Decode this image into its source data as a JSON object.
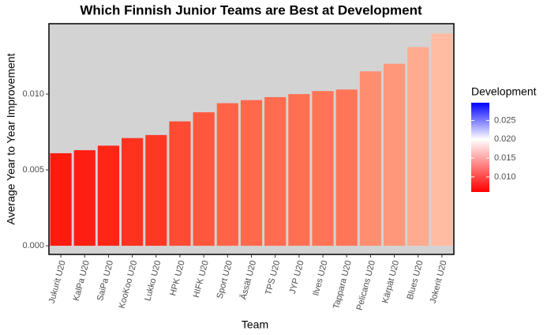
{
  "chart_data": {
    "type": "bar",
    "title": "Which Finnish Junior Teams are Best at Development",
    "x_label": "Team",
    "y_label": "Average Year to Year Improvement",
    "categories": [
      "Jukurit U20",
      "KalPa U20",
      "SaiPa U20",
      "KooKoo U20",
      "Lukko U20",
      "HPK U20",
      "HIFK U20",
      "Sport U20",
      "Ässät U20",
      "TPS U20",
      "JYP U20",
      "Ilves U20",
      "Tappara U20",
      "Pelicans U20",
      "Kärpät U20",
      "Blues U20",
      "Jokerit U20"
    ],
    "values": [
      0.0061,
      0.0063,
      0.0066,
      0.0071,
      0.0073,
      0.0082,
      0.0088,
      0.0094,
      0.0096,
      0.0098,
      0.01,
      0.0102,
      0.0103,
      0.0115,
      0.012,
      0.0131,
      0.014
    ],
    "colors": [
      "#ff1a0e",
      "#ff1f12",
      "#ff2616",
      "#ff3220",
      "#ff3823",
      "#ff4b33",
      "#ff573d",
      "#ff6448",
      "#ff684b",
      "#ff6c4f",
      "#ff7053",
      "#ff7356",
      "#ff7558",
      "#ff8d70",
      "#ff977a",
      "#ffab8f",
      "#ffbca2"
    ],
    "ylim": [
      -0.00057,
      0.01464
    ],
    "yticks": [
      {
        "value": 0,
        "label": "0.000"
      },
      {
        "value": 0.005,
        "label": "0.005"
      },
      {
        "value": 0.01,
        "label": "0.010"
      }
    ],
    "grid": false,
    "legend_title": "Development",
    "legend_lim": [
      0.006,
      0.0297
    ],
    "legend_ticks": [
      {
        "value": 0.01,
        "label": "0.010"
      },
      0.015,
      {
        "value": 0.02,
        "label": "0.020"
      },
      0.025
    ],
    "fill_scale": {
      "low": "#ff0000",
      "mid": "#ffffff",
      "high": "#0000ff",
      "midpoint": 0.02
    }
  }
}
